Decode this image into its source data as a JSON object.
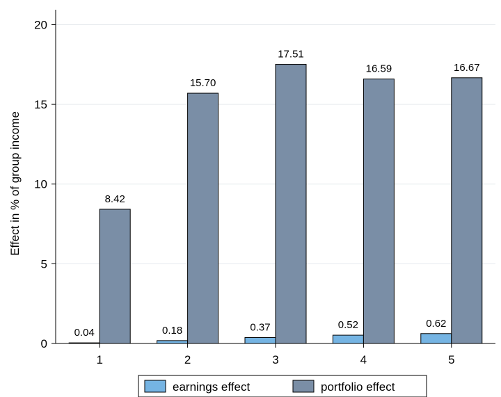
{
  "chart_data": {
    "type": "bar",
    "categories": [
      "1",
      "2",
      "3",
      "4",
      "5"
    ],
    "series": [
      {
        "name": "earnings effect",
        "values": [
          0.04,
          0.18,
          0.37,
          0.52,
          0.62
        ],
        "value_labels": [
          "0.04",
          "0.18",
          "0.37",
          "0.52",
          "0.62"
        ],
        "color": "#75b4e3"
      },
      {
        "name": "portfolio effect",
        "values": [
          8.42,
          15.7,
          17.51,
          16.59,
          16.67
        ],
        "value_labels": [
          "8.42",
          "15.70",
          "17.51",
          "16.59",
          "16.67"
        ],
        "color": "#7a8ea6"
      }
    ],
    "ylabel": "Effect in % of group income",
    "xlabel": "",
    "title": "",
    "ylim": [
      0,
      20
    ],
    "yticks": [
      0,
      5,
      10,
      15,
      20
    ],
    "grid": true,
    "legend_position": "bottom"
  }
}
